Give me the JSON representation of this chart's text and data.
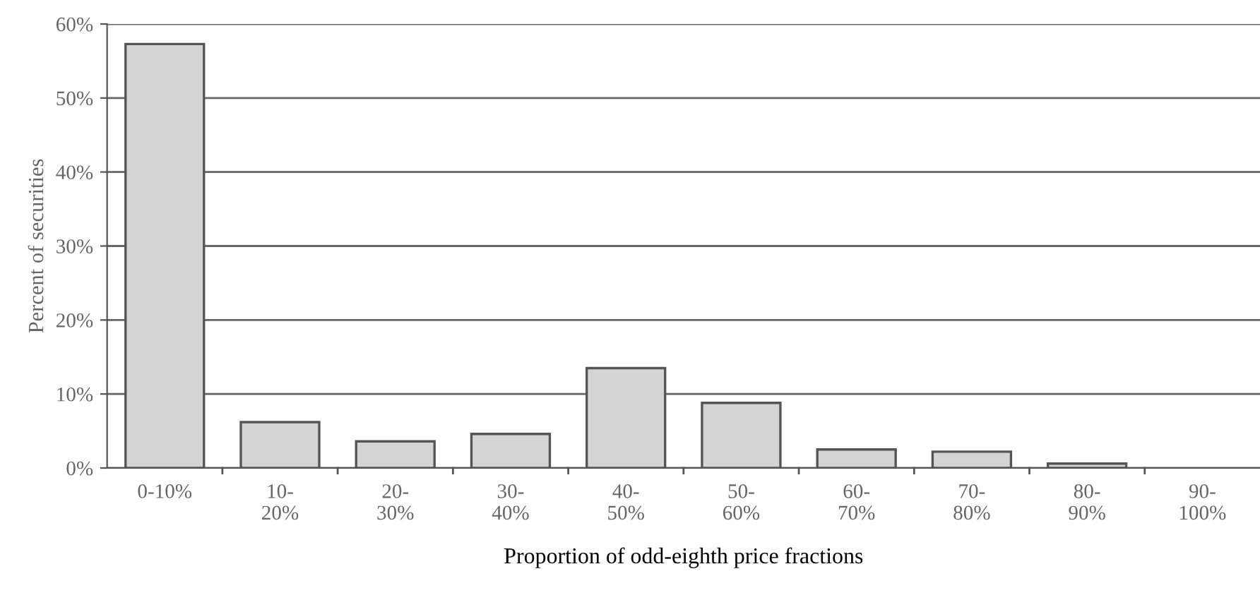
{
  "chart_data": {
    "type": "bar",
    "xlabel": "Proportion of odd-eighth price fractions",
    "ylabel": "Percent of securities",
    "categories": [
      "0-10%",
      "10-\n20%",
      "20-\n30%",
      "30-\n40%",
      "40-\n50%",
      "50-\n60%",
      "60-\n70%",
      "70-\n80%",
      "80-\n90%",
      "90-\n100%"
    ],
    "values": [
      57.3,
      6.2,
      3.6,
      4.6,
      13.5,
      8.8,
      2.5,
      2.2,
      0.6,
      0
    ],
    "color": "#d4d4d4",
    "ylim": [
      0,
      60
    ],
    "yticks": [
      {
        "value": 0,
        "label": "0%"
      },
      {
        "value": 10,
        "label": "10%"
      },
      {
        "value": 20,
        "label": "20%"
      },
      {
        "value": 30,
        "label": "30%"
      },
      {
        "value": 40,
        "label": "40%"
      },
      {
        "value": 50,
        "label": "50%"
      },
      {
        "value": 60,
        "label": "60%"
      }
    ],
    "grid": "y"
  }
}
